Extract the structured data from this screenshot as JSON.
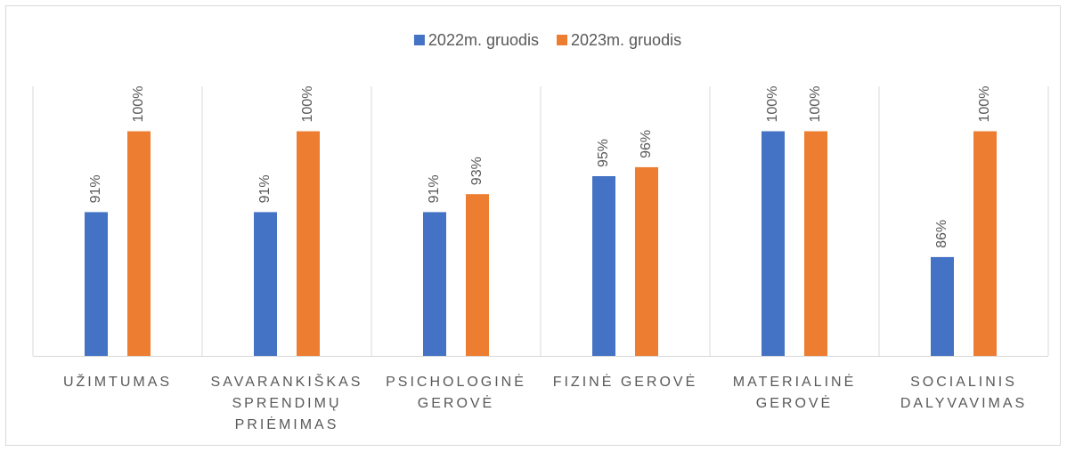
{
  "chart_data": {
    "type": "bar",
    "categories": [
      "UŽIMTUMAS",
      "SAVARANKIŠKAS SPRENDIMŲ PRIĖMIMAS",
      "PSICHOLOGINĖ GEROVĖ",
      "FIZINĖ GEROVĖ",
      "MATERIALINĖ GEROVĖ",
      "SOCIALINIS DALYVAVIMAS"
    ],
    "series": [
      {
        "name": "2022m. gruodis",
        "color": "#4472c4",
        "values": [
          91,
          91,
          91,
          95,
          100,
          86
        ],
        "value_labels": [
          "91%",
          "91%",
          "91%",
          "95%",
          "100%",
          "86%"
        ]
      },
      {
        "name": "2023m. gruodis",
        "color": "#ed7d31",
        "values": [
          100,
          100,
          93,
          96,
          100,
          100
        ],
        "value_labels": [
          "100%",
          "100%",
          "93%",
          "96%",
          "100%",
          "100%"
        ]
      }
    ],
    "ylim": [
      75,
      105
    ],
    "legend": "top"
  }
}
